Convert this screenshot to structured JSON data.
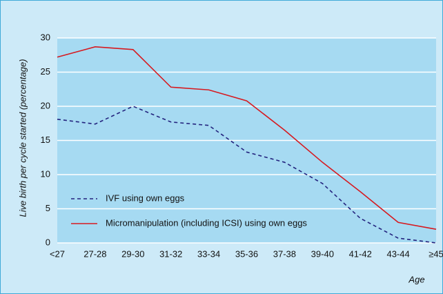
{
  "chart_data": {
    "type": "line",
    "ylabel": "Live birth per cycle started (percentage)",
    "xlabel": "Age",
    "categories": [
      "<27",
      "27-28",
      "29-30",
      "31-32",
      "33-34",
      "35-36",
      "37-38",
      "39-40",
      "41-42",
      "43-44",
      "≥45"
    ],
    "series": [
      {
        "name": "IVF using own eggs",
        "color": "#23237e",
        "dashed": true,
        "values": [
          18.1,
          17.4,
          20.0,
          17.7,
          17.2,
          13.3,
          11.8,
          8.7,
          3.6,
          0.7,
          0
        ]
      },
      {
        "name": "Micromanipulation (including ICSI) using own eggs",
        "color": "#d7191f",
        "dashed": false,
        "values": [
          27.2,
          28.7,
          28.3,
          22.8,
          22.4,
          20.8,
          16.5,
          11.8,
          7.5,
          3.0,
          2.0
        ]
      }
    ],
    "ylim": [
      0,
      30
    ],
    "yticks": [
      0,
      5,
      10,
      15,
      20,
      25,
      30
    ],
    "grid": true,
    "legend": "lower left"
  }
}
